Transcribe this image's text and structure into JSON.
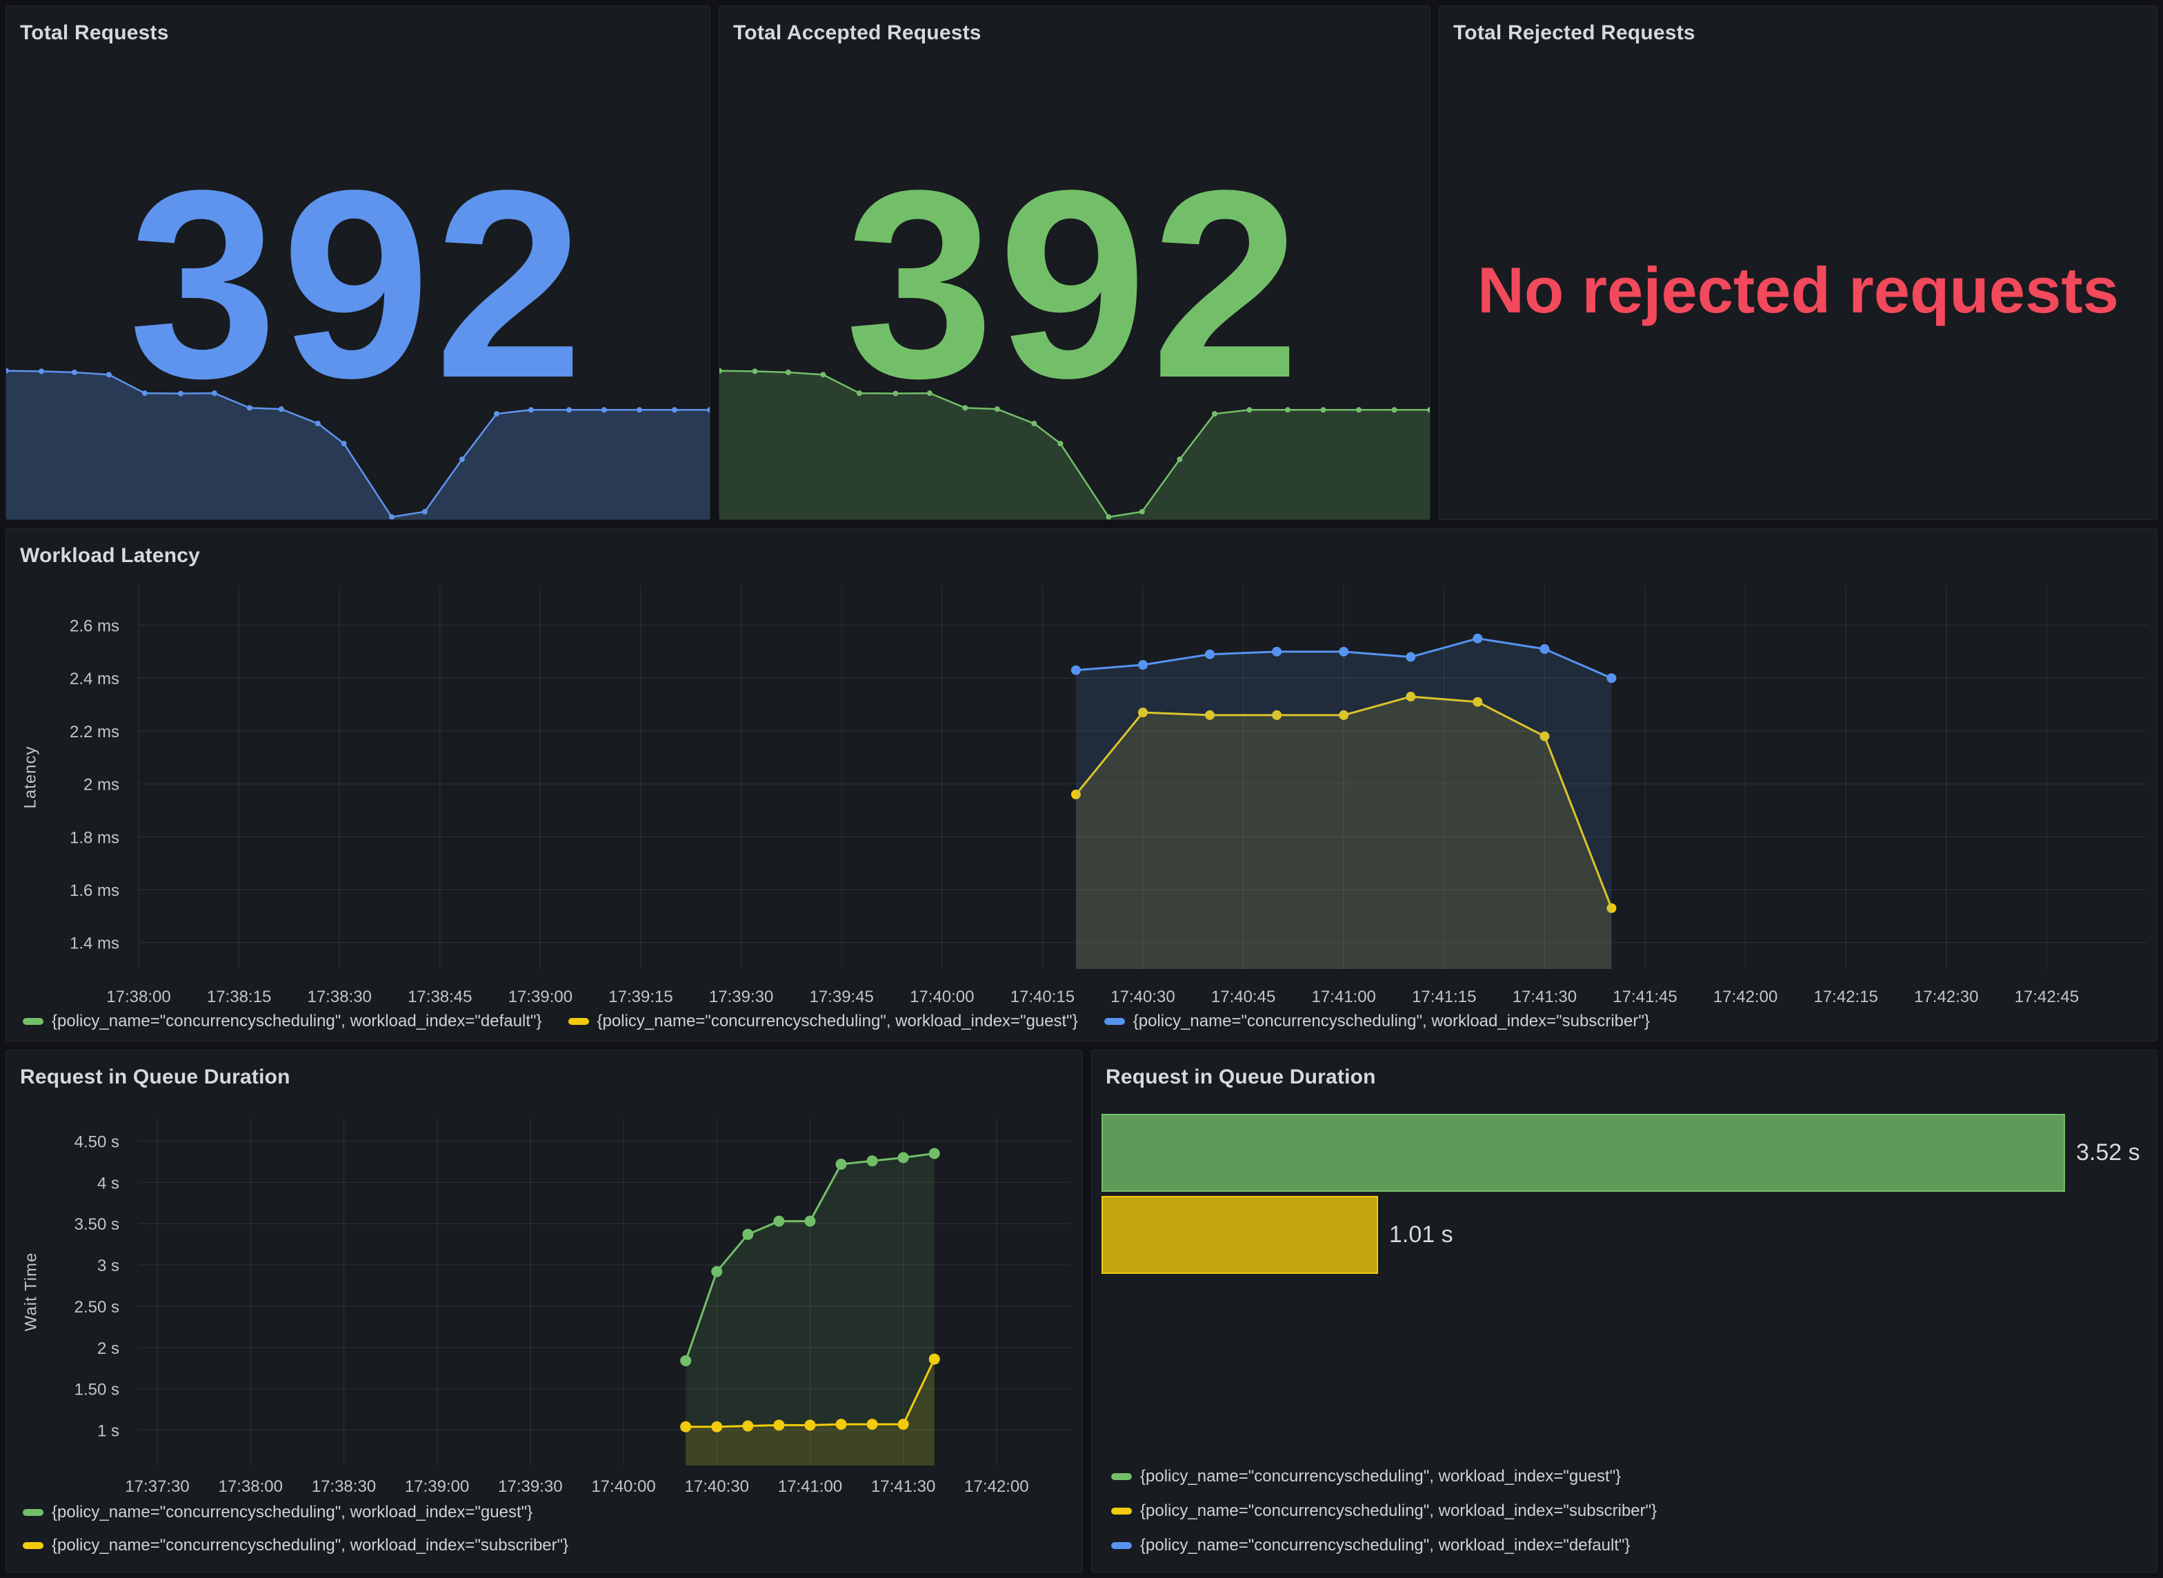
{
  "theme": {
    "page_bg": "#111217",
    "panel_bg": "#181b1f",
    "panel_border": "#25272e",
    "title_color": "#d8d9da",
    "tick_color": "#c2c5cc",
    "legend_color": "#d0d2d6",
    "grid_color": "rgba(204,204,220,0.09)",
    "colors": {
      "green": "#73BF69",
      "yellow": "#F2CC0C",
      "blue": "#5794F2",
      "red": "#F2495C",
      "stat_blue": "#5E94EE"
    }
  },
  "panels": {
    "total_requests": {
      "title": "Total Requests",
      "value": "392",
      "color_key": "stat_blue",
      "spark_fill_opacity": 0.26,
      "sparkline": [
        [
          0,
          0.03
        ],
        [
          0.05,
          0.033
        ],
        [
          0.097,
          0.04
        ],
        [
          0.146,
          0.055
        ],
        [
          0.197,
          0.176
        ],
        [
          0.248,
          0.178
        ],
        [
          0.296,
          0.176
        ],
        [
          0.346,
          0.272
        ],
        [
          0.391,
          0.28
        ],
        [
          0.443,
          0.374
        ],
        [
          0.48,
          0.505
        ],
        [
          0.548,
          0.985
        ],
        [
          0.595,
          0.95
        ],
        [
          0.648,
          0.608
        ],
        [
          0.697,
          0.311
        ],
        [
          0.746,
          0.285
        ],
        [
          0.8,
          0.285
        ],
        [
          0.85,
          0.285
        ],
        [
          0.9,
          0.285
        ],
        [
          0.95,
          0.285
        ],
        [
          1,
          0.285
        ]
      ]
    },
    "total_accepted": {
      "title": "Total Accepted Requests",
      "value": "392",
      "color_key": "green",
      "spark_fill_opacity": 0.22,
      "sparkline": [
        [
          0,
          0.03
        ],
        [
          0.05,
          0.033
        ],
        [
          0.097,
          0.04
        ],
        [
          0.146,
          0.055
        ],
        [
          0.197,
          0.176
        ],
        [
          0.248,
          0.178
        ],
        [
          0.296,
          0.176
        ],
        [
          0.346,
          0.272
        ],
        [
          0.391,
          0.28
        ],
        [
          0.443,
          0.374
        ],
        [
          0.48,
          0.505
        ],
        [
          0.548,
          0.985
        ],
        [
          0.595,
          0.95
        ],
        [
          0.648,
          0.608
        ],
        [
          0.697,
          0.311
        ],
        [
          0.746,
          0.285
        ],
        [
          0.8,
          0.285
        ],
        [
          0.85,
          0.285
        ],
        [
          0.9,
          0.285
        ],
        [
          0.95,
          0.285
        ],
        [
          1,
          0.285
        ]
      ]
    },
    "total_rejected": {
      "title": "Total Rejected Requests",
      "message": "No rejected requests",
      "color_key": "red"
    }
  },
  "chart_data": [
    {
      "id": "workload_latency",
      "type": "line",
      "title": "Workload Latency",
      "ylabel": "Latency",
      "x_domain": [
        0,
        300
      ],
      "y_domain": [
        1.3,
        2.75
      ],
      "grid": true,
      "legend_position": "bottom",
      "x_ticks": [
        {
          "s": 0,
          "label": "17:38:00"
        },
        {
          "s": 15,
          "label": "17:38:15"
        },
        {
          "s": 30,
          "label": "17:38:30"
        },
        {
          "s": 45,
          "label": "17:38:45"
        },
        {
          "s": 60,
          "label": "17:39:00"
        },
        {
          "s": 75,
          "label": "17:39:15"
        },
        {
          "s": 90,
          "label": "17:39:30"
        },
        {
          "s": 105,
          "label": "17:39:45"
        },
        {
          "s": 120,
          "label": "17:40:00"
        },
        {
          "s": 135,
          "label": "17:40:15"
        },
        {
          "s": 150,
          "label": "17:40:30"
        },
        {
          "s": 165,
          "label": "17:40:45"
        },
        {
          "s": 180,
          "label": "17:41:00"
        },
        {
          "s": 195,
          "label": "17:41:15"
        },
        {
          "s": 210,
          "label": "17:41:30"
        },
        {
          "s": 225,
          "label": "17:41:45"
        },
        {
          "s": 240,
          "label": "17:42:00"
        },
        {
          "s": 255,
          "label": "17:42:15"
        },
        {
          "s": 270,
          "label": "17:42:30"
        },
        {
          "s": 285,
          "label": "17:42:45"
        }
      ],
      "y_ticks": [
        {
          "v": 1.4,
          "label": "1.4 ms"
        },
        {
          "v": 1.6,
          "label": "1.6 ms"
        },
        {
          "v": 1.8,
          "label": "1.8 ms"
        },
        {
          "v": 2.0,
          "label": "2 ms"
        },
        {
          "v": 2.2,
          "label": "2.2 ms"
        },
        {
          "v": 2.4,
          "label": "2.4 ms"
        },
        {
          "v": 2.6,
          "label": "2.6 ms"
        }
      ],
      "series": [
        {
          "name": "{policy_name=\"concurrencyscheduling\", workload_index=\"default\"}",
          "color_key": "green",
          "points": []
        },
        {
          "name": "{policy_name=\"concurrencyscheduling\", workload_index=\"guest\"}",
          "color_key": "yellow",
          "points": [
            [
              140,
              1.96
            ],
            [
              150,
              2.27
            ],
            [
              160,
              2.26
            ],
            [
              170,
              2.26
            ],
            [
              180,
              2.26
            ],
            [
              190,
              2.33
            ],
            [
              200,
              2.31
            ],
            [
              210,
              2.18
            ],
            [
              220,
              1.53
            ]
          ]
        },
        {
          "name": "{policy_name=\"concurrencyscheduling\", workload_index=\"subscriber\"}",
          "color_key": "blue",
          "points": [
            [
              140,
              2.43
            ],
            [
              150,
              2.45
            ],
            [
              160,
              2.49
            ],
            [
              170,
              2.5
            ],
            [
              180,
              2.5
            ],
            [
              190,
              2.48
            ],
            [
              200,
              2.55
            ],
            [
              210,
              2.51
            ],
            [
              220,
              2.4
            ]
          ]
        }
      ],
      "legend": [
        {
          "color_key": "green",
          "label": "{policy_name=\"concurrencyscheduling\", workload_index=\"default\"}"
        },
        {
          "color_key": "yellow",
          "label": "{policy_name=\"concurrencyscheduling\", workload_index=\"guest\"}"
        },
        {
          "color_key": "blue",
          "label": "{policy_name=\"concurrencyscheduling\", workload_index=\"subscriber\"}"
        }
      ]
    },
    {
      "id": "queue_duration_line",
      "type": "line",
      "title": "Request in Queue Duration",
      "ylabel": "Wait Time",
      "x_domain": [
        -6,
        294
      ],
      "y_domain": [
        0.57,
        4.78
      ],
      "grid": true,
      "legend_position": "bottom",
      "x_ticks": [
        {
          "s": 0,
          "label": "17:37:30"
        },
        {
          "s": 30,
          "label": "17:38:00"
        },
        {
          "s": 60,
          "label": "17:38:30"
        },
        {
          "s": 90,
          "label": "17:39:00"
        },
        {
          "s": 120,
          "label": "17:39:30"
        },
        {
          "s": 150,
          "label": "17:40:00"
        },
        {
          "s": 180,
          "label": "17:40:30"
        },
        {
          "s": 210,
          "label": "17:41:00"
        },
        {
          "s": 240,
          "label": "17:41:30"
        },
        {
          "s": 270,
          "label": "17:42:00"
        }
      ],
      "y_ticks": [
        {
          "v": 1,
          "label": "1 s"
        },
        {
          "v": 1.5,
          "label": "1.50 s"
        },
        {
          "v": 2,
          "label": "2 s"
        },
        {
          "v": 2.5,
          "label": "2.50 s"
        },
        {
          "v": 3,
          "label": "3 s"
        },
        {
          "v": 3.5,
          "label": "3.50 s"
        },
        {
          "v": 4,
          "label": "4 s"
        },
        {
          "v": 4.5,
          "label": "4.50 s"
        }
      ],
      "series": [
        {
          "name": "{policy_name=\"concurrencyscheduling\", workload_index=\"guest\"}",
          "color_key": "green",
          "points": [
            [
              170,
              1.84
            ],
            [
              180,
              2.92
            ],
            [
              190,
              3.37
            ],
            [
              200,
              3.53
            ],
            [
              210,
              3.53
            ],
            [
              220,
              4.22
            ],
            [
              230,
              4.26
            ],
            [
              240,
              4.3
            ],
            [
              250,
              4.35
            ]
          ]
        },
        {
          "name": "{policy_name=\"concurrencyscheduling\", workload_index=\"subscriber\"}",
          "color_key": "yellow",
          "points": [
            [
              170,
              1.04
            ],
            [
              180,
              1.04
            ],
            [
              190,
              1.05
            ],
            [
              200,
              1.06
            ],
            [
              210,
              1.06
            ],
            [
              220,
              1.07
            ],
            [
              230,
              1.07
            ],
            [
              240,
              1.07
            ],
            [
              250,
              1.86
            ]
          ]
        }
      ],
      "legend": [
        {
          "color_key": "green",
          "label": "{policy_name=\"concurrencyscheduling\", workload_index=\"guest\"}"
        },
        {
          "color_key": "yellow",
          "label": "{policy_name=\"concurrencyscheduling\", workload_index=\"subscriber\"}"
        }
      ]
    },
    {
      "id": "queue_duration_bar",
      "type": "bar",
      "title": "Request in Queue Duration",
      "orientation": "horizontal",
      "scale_max": 3.82,
      "bars": [
        {
          "name": "{policy_name=\"concurrencyscheduling\", workload_index=\"guest\"}",
          "color_key": "green",
          "value": 3.52,
          "label": "3.52 s"
        },
        {
          "name": "{policy_name=\"concurrencyscheduling\", workload_index=\"subscriber\"}",
          "color_key": "yellow",
          "value": 1.01,
          "label": "1.01 s"
        }
      ],
      "legend": [
        {
          "color_key": "green",
          "label": "{policy_name=\"concurrencyscheduling\", workload_index=\"guest\"}"
        },
        {
          "color_key": "yellow",
          "label": "{policy_name=\"concurrencyscheduling\", workload_index=\"subscriber\"}"
        },
        {
          "color_key": "blue",
          "label": "{policy_name=\"concurrencyscheduling\", workload_index=\"default\"}"
        }
      ]
    }
  ]
}
